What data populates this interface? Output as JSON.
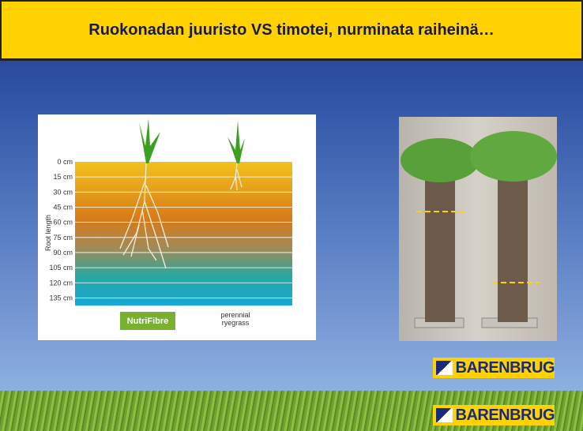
{
  "slide": {
    "title": "Ruokonadan juuristo VS timotei, nurminata raiheinä…",
    "diagram": {
      "axis_label": "Root length",
      "depth_labels": [
        "0 cm",
        "15 cm",
        "30 cm",
        "45 cm",
        "60 cm",
        "75 cm",
        "90 cm",
        "105 cm",
        "120 cm",
        "135 cm"
      ],
      "left_plant_logo": "NutriFibre",
      "right_plant_label": [
        "perennial",
        "ryegrass"
      ]
    },
    "photo_logo": "BARENBRUG",
    "footer_logo": "BARENBRUG"
  }
}
